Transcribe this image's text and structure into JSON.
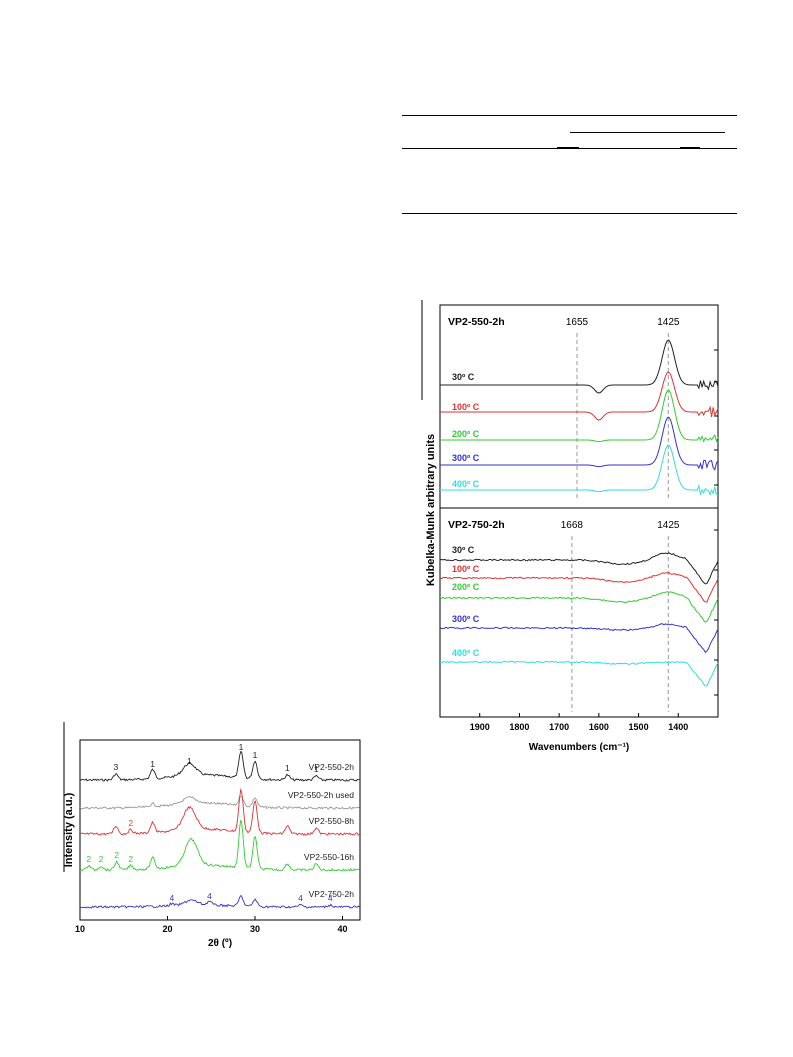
{
  "chart_data": [
    {
      "type": "line",
      "title": "",
      "xlabel": "2θ (º)",
      "ylabel": "Intensity (a.u.)",
      "xlim": [
        10,
        42
      ],
      "xticks": [
        "10",
        "20",
        "30",
        "40"
      ],
      "series": [
        {
          "name": "VP2-550-2h",
          "color": "#222222",
          "peaks": [
            {
              "x": 14.1,
              "label": "3"
            },
            {
              "x": 18.3,
              "label": "1"
            },
            {
              "x": 22.5,
              "label": "1"
            },
            {
              "x": 28.4,
              "label": "1"
            },
            {
              "x": 30.0,
              "label": "1"
            },
            {
              "x": 33.7,
              "label": "1"
            },
            {
              "x": 37.0,
              "label": "1"
            }
          ]
        },
        {
          "name": "VP2-550-2h used",
          "color": "#999999",
          "peaks": []
        },
        {
          "name": "VP2-550-8h",
          "color": "#dd3333",
          "peaks": [
            {
              "x": 15.8,
              "label": "2"
            }
          ]
        },
        {
          "name": "VP2-550-16h",
          "color": "#33cc33",
          "peaks": [
            {
              "x": 11.0,
              "label": "2"
            },
            {
              "x": 12.4,
              "label": "2"
            },
            {
              "x": 14.2,
              "label": "2"
            },
            {
              "x": 15.8,
              "label": "2"
            }
          ]
        },
        {
          "name": "VP2-750-2h",
          "color": "#3333cc",
          "peaks": [
            {
              "x": 20.5,
              "label": "4"
            },
            {
              "x": 24.8,
              "label": "4"
            },
            {
              "x": 35.2,
              "label": "4"
            },
            {
              "x": 38.6,
              "label": "4"
            }
          ]
        }
      ]
    },
    {
      "type": "line",
      "xlabel": "Wavenumbers (cm⁻¹)",
      "ylabel": "Kubelka-Munk arbitrary units",
      "xlim": [
        2000,
        1300
      ],
      "xticks": [
        "1900",
        "1800",
        "1700",
        "1600",
        "1500",
        "1400"
      ],
      "panels": [
        {
          "title": "VP2-550-2h",
          "markers": [
            "1655",
            "1425"
          ],
          "marker_x": [
            1655,
            1425
          ],
          "series": [
            {
              "name": "30º C",
              "color": "#222222"
            },
            {
              "name": "100º C",
              "color": "#dd3333"
            },
            {
              "name": "200º C",
              "color": "#33cc33"
            },
            {
              "name": "300º C",
              "color": "#3333cc"
            },
            {
              "name": "400º C",
              "color": "#33dddd"
            }
          ]
        },
        {
          "title": "VP2-750-2h",
          "markers": [
            "1668",
            "1425"
          ],
          "marker_x": [
            1668,
            1425
          ],
          "series": [
            {
              "name": "30º C",
              "color": "#222222"
            },
            {
              "name": "100º C",
              "color": "#dd3333"
            },
            {
              "name": "200º C",
              "color": "#33cc33"
            },
            {
              "name": "300º C",
              "color": "#3333cc"
            },
            {
              "name": "400º C",
              "color": "#33dddd"
            }
          ]
        }
      ]
    }
  ]
}
